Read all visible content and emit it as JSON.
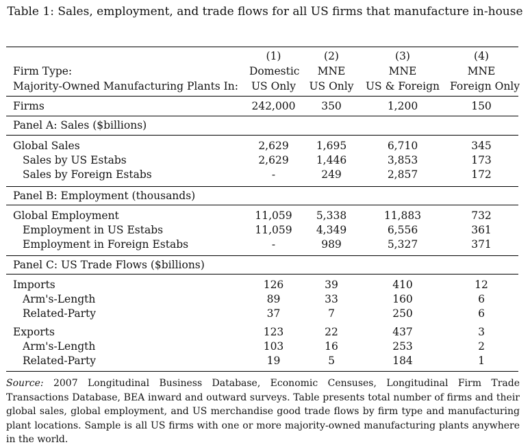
{
  "caption": "Table 1: Sales, employment, and trade flows for all US firms that manufacture in-house",
  "header": {
    "row1": {
      "label": "",
      "cols": [
        "(1)",
        "(2)",
        "(3)",
        "(4)"
      ]
    },
    "row2": {
      "label": "Firm Type:",
      "cols": [
        "Domestic",
        "MNE",
        "MNE",
        "MNE"
      ]
    },
    "row3": {
      "label": "Majority-Owned Manufacturing Plants In:",
      "cols": [
        "US Only",
        "US Only",
        "US & Foreign",
        "Foreign Only"
      ]
    }
  },
  "firms": {
    "label": "Firms",
    "cols": [
      "242,000",
      "350",
      "1,200",
      "150"
    ]
  },
  "panel_a": {
    "title": "Panel A: Sales ($billions)",
    "rows": [
      {
        "label": "Global Sales",
        "cols": [
          "2,629",
          "1,695",
          "6,710",
          "345"
        ]
      },
      {
        "label": "Sales by US Estabs",
        "cols": [
          "2,629",
          "1,446",
          "3,853",
          "173"
        ]
      },
      {
        "label": "Sales by Foreign Estabs",
        "cols": [
          "-",
          "249",
          "2,857",
          "172"
        ]
      }
    ]
  },
  "panel_b": {
    "title": "Panel B: Employment (thousands)",
    "rows": [
      {
        "label": "Global Employment",
        "cols": [
          "11,059",
          "5,338",
          "11,883",
          "732"
        ]
      },
      {
        "label": "Employment in US Estabs",
        "cols": [
          "11,059",
          "4,349",
          "6,556",
          "361"
        ]
      },
      {
        "label": "Employment in Foreign Estabs",
        "cols": [
          "-",
          "989",
          "5,327",
          "371"
        ]
      }
    ]
  },
  "panel_c": {
    "title": "Panel C: US Trade Flows ($billions)",
    "rows": [
      {
        "label": "Imports",
        "cols": [
          "126",
          "39",
          "410",
          "12"
        ]
      },
      {
        "label": "Arm's-Length",
        "cols": [
          "89",
          "33",
          "160",
          "6"
        ]
      },
      {
        "label": "Related-Party",
        "cols": [
          "37",
          "7",
          "250",
          "6"
        ]
      },
      {
        "label": "Exports",
        "cols": [
          "123",
          "22",
          "437",
          "3"
        ]
      },
      {
        "label": "Arm's-Length",
        "cols": [
          "103",
          "16",
          "253",
          "2"
        ]
      },
      {
        "label": "Related-Party",
        "cols": [
          "19",
          "5",
          "184",
          "1"
        ]
      }
    ]
  },
  "note": {
    "source_label": "Source:",
    "text": " 2007 Longitudinal Business Database, Economic Censuses, Longitudinal Firm Trade Transactions Database, BEA inward and outward surveys. Table presents total number of firms and their global sales, global employment, and US merchandise good trade flows by firm type and manufacturing plant locations. Sample is all US firms with one or more majority-owned manufacturing plants anywhere in the world."
  }
}
